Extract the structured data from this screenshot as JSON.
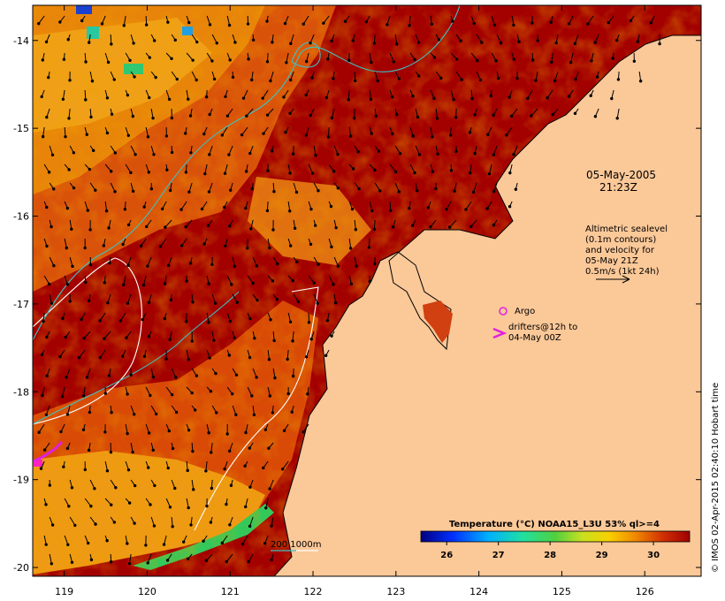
{
  "map": {
    "date_line1": "05-May-2005",
    "date_line2": "21:23Z",
    "legend_text_lines": [
      "Altimetric sealevel",
      "(0.1m contours)",
      "and velocity for",
      "05-May 21Z",
      "0.5m/s (1kt 24h)"
    ],
    "argo_label": "Argo",
    "drifter_label_lines": [
      "drifters@12h to",
      "04-May 00Z"
    ],
    "depth_legend": "200  1000m",
    "colorbar_title": "Temperature (°C) NOAA15_L3U 53% ql>=4",
    "colorbar_ticks": [
      "26",
      "27",
      "28",
      "29",
      "30"
    ],
    "colorbar_range": [
      25.5,
      30.7
    ],
    "credit": "© IMOS 02-Apr-2015 02:40:10 Hobart time",
    "lon_ticks": [
      "119",
      "120",
      "121",
      "122",
      "123",
      "124",
      "125",
      "126"
    ],
    "lat_ticks": [
      "-14",
      "-15",
      "-16",
      "-17",
      "-18",
      "-19",
      "-20"
    ],
    "lon_range": [
      118.62,
      126.68
    ],
    "lat_range": [
      -13.6,
      -20.1
    ],
    "colors": {
      "warm_max": "#a30000",
      "warm": "#d23e00",
      "mid": "#e8840a",
      "cool": "#f2b21a",
      "coastal_green": "#34c85a",
      "land": "#fbc898",
      "contour_depth_200": "#40c0c0",
      "contour_depth_1000": "#ffffff",
      "argo": "#e020e0",
      "drifter": "#e020e0"
    }
  }
}
